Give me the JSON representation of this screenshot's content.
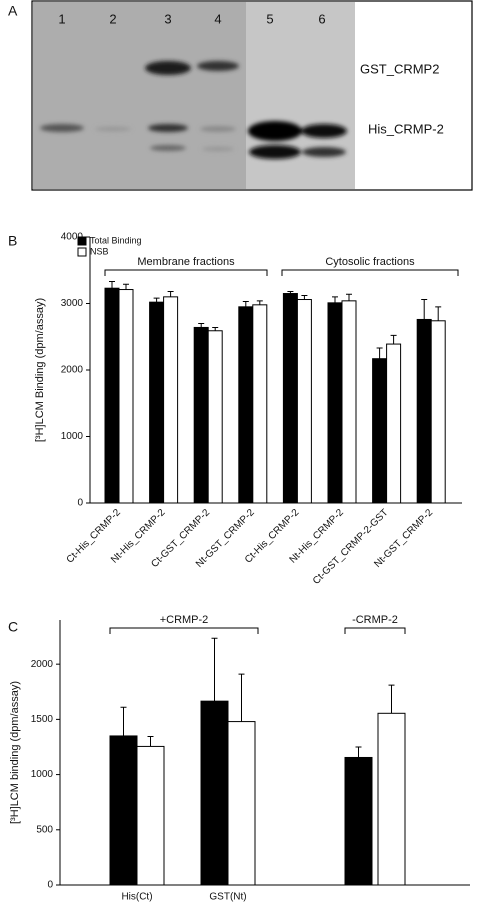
{
  "gel": {
    "label": "A",
    "lanes": [
      "1",
      "2",
      "3",
      "4",
      "5",
      "6"
    ],
    "bands": [
      "GST_CRMP2",
      "His_CRMP-2"
    ]
  },
  "chart_data": [
    {
      "type": "bar",
      "label": "B",
      "ylabel": "[³H]LCM Binding (dpm/assay)",
      "categories": [
        "Ct-His_CRMP-2",
        "Nt-His_CRMP-2",
        "Ct-GST_CRMP-2",
        "Nt-GST_CRMP-2",
        "Ct-His_CRMP-2",
        "Nt-His_CRMP-2",
        "Ct-GST_CRMP-2-GST",
        "Nt-GST_CRMP-2"
      ],
      "series": [
        {
          "name": "Total Binding",
          "color": "#000000",
          "values": [
            3230,
            3020,
            2640,
            2950,
            3150,
            3010,
            2170,
            2760
          ],
          "errors": [
            100,
            60,
            60,
            80,
            30,
            90,
            160,
            300
          ]
        },
        {
          "name": "NSB",
          "color": "#ffffff",
          "values": [
            3210,
            3100,
            2590,
            2980,
            3060,
            3040,
            2390,
            2740
          ],
          "errors": [
            80,
            80,
            50,
            60,
            60,
            100,
            130,
            210
          ]
        }
      ],
      "annotations": [
        "Membrane fractions",
        "Cytosolic fractions"
      ],
      "ylim": [
        0,
        4000
      ],
      "yticks": [
        0,
        1000,
        2000,
        3000,
        4000
      ],
      "legend": "top-left"
    },
    {
      "type": "bar",
      "label": "C",
      "ylabel": "[³H]LCM binding (dpm/assay)",
      "categories": [
        "His(Ct)",
        "GST(Nt)",
        null
      ],
      "series": [
        {
          "color": "#000000",
          "values": [
            1350,
            1665,
            1155
          ],
          "errors": [
            260,
            570,
            95
          ]
        },
        {
          "color": "#ffffff",
          "values": [
            1255,
            1480,
            1555
          ],
          "errors": [
            90,
            430,
            255
          ]
        }
      ],
      "annotations": [
        "+CRMP-2",
        "-CRMP-2"
      ],
      "ylim": [
        0,
        2400
      ],
      "yticks": [
        0,
        500,
        1000,
        1500,
        2000
      ]
    }
  ]
}
